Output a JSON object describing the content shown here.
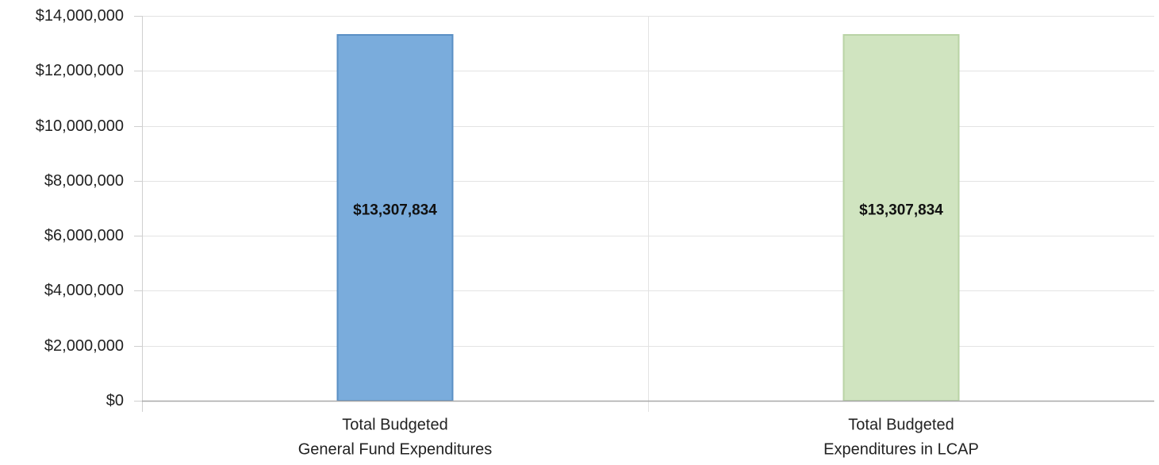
{
  "chart_data": {
    "type": "bar",
    "title": "",
    "xlabel": "",
    "ylabel": "",
    "categories": [
      [
        "Total Budgeted",
        "General Fund Expenditures"
      ],
      [
        "Total Budgeted",
        "Expenditures in LCAP"
      ]
    ],
    "values": [
      13307834,
      13307834
    ],
    "data_labels": [
      "$13,307,834",
      "$13,307,834"
    ],
    "bar_colors": [
      "#7aacdc",
      "#d0e4c0"
    ],
    "bar_edge_colors": [
      "#5a8fc4",
      "#b9d3a5"
    ],
    "ylim": [
      0,
      14000000
    ],
    "y_ticks": [
      0,
      2000000,
      4000000,
      6000000,
      8000000,
      10000000,
      12000000,
      14000000
    ],
    "y_tick_labels": [
      "$0",
      "$2,000,000",
      "$4,000,000",
      "$6,000,000",
      "$8,000,000",
      "$10,000,000",
      "$12,000,000",
      "$14,000,000"
    ],
    "grid": true,
    "legend": "none"
  }
}
